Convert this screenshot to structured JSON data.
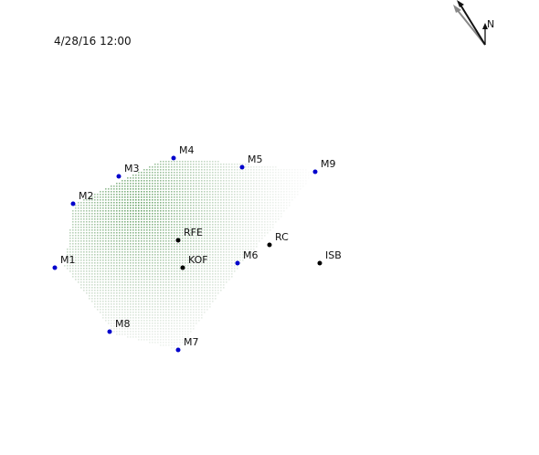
{
  "timestamp": "4/28/16 12:00",
  "north_label": "N",
  "colors": {
    "monitor_station": "#0000cc",
    "reference_station": "#000000",
    "field_low": "#e4f2e4",
    "field_high": "#2e8b2e"
  },
  "stations": {
    "monitors": [
      {
        "id": "M1",
        "label": "M1"
      },
      {
        "id": "M2",
        "label": "M2"
      },
      {
        "id": "M3",
        "label": "M3"
      },
      {
        "id": "M4",
        "label": "M4"
      },
      {
        "id": "M5",
        "label": "M5"
      },
      {
        "id": "M6",
        "label": "M6"
      },
      {
        "id": "M7",
        "label": "M7"
      },
      {
        "id": "M8",
        "label": "M8"
      },
      {
        "id": "M9",
        "label": "M9"
      }
    ],
    "references": [
      {
        "id": "RFE",
        "label": "RFE"
      },
      {
        "id": "KOF",
        "label": "KOF"
      },
      {
        "id": "RC",
        "label": "RC"
      },
      {
        "id": "ISB",
        "label": "ISB"
      }
    ]
  },
  "icons": {
    "north_arrow": "north-arrow-icon",
    "wind_arrow": "wind-direction-arrow-icon"
  }
}
